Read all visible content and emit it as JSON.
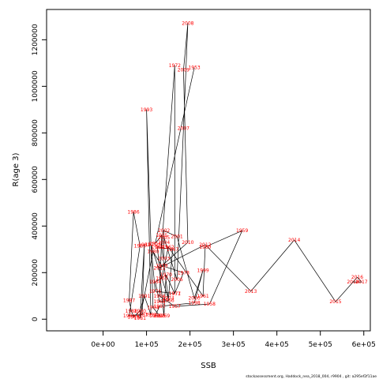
{
  "chart_data": {
    "type": "scatter",
    "connected": true,
    "title": "",
    "xlabel": "SSB",
    "ylabel": "R(age 3)",
    "xlim": [
      -130000,
      615000
    ],
    "ylim": [
      -50000,
      1330000
    ],
    "x_ticks": [
      0,
      100000,
      200000,
      300000,
      400000,
      500000,
      600000
    ],
    "x_tick_labels": [
      "0e+00",
      "1e+05",
      "2e+05",
      "3e+05",
      "4e+05",
      "5e+05",
      "6e+05"
    ],
    "y_ticks": [
      0,
      200000,
      400000,
      600000,
      800000,
      1000000,
      1200000
    ],
    "y_tick_labels": [
      "0",
      "200000",
      "400000",
      "600000",
      "800000",
      "1000000",
      "1200000"
    ],
    "line_color": "#000000",
    "label_color": "#ff0000",
    "points": [
      {
        "year": "1953",
        "ssb": 210000,
        "rec": 1080000
      },
      {
        "year": "1954",
        "ssb": 120000,
        "rec": 325000
      },
      {
        "year": "1955",
        "ssb": 135000,
        "rec": 360000
      },
      {
        "year": "1956",
        "ssb": 130000,
        "rec": 100000
      },
      {
        "year": "1957",
        "ssb": 165000,
        "rec": 55000
      },
      {
        "year": "1958",
        "ssb": 245000,
        "rec": 65000
      },
      {
        "year": "1959",
        "ssb": 320000,
        "rec": 380000
      },
      {
        "year": "1960",
        "ssb": 235000,
        "rec": 310000
      },
      {
        "year": "1961",
        "ssb": 230000,
        "rec": 100000
      },
      {
        "year": "1962",
        "ssb": 150000,
        "rec": 310000
      },
      {
        "year": "1963",
        "ssb": 135000,
        "rec": 175000
      },
      {
        "year": "1964",
        "ssb": 120000,
        "rec": 160000
      },
      {
        "year": "1965",
        "ssb": 130000,
        "rec": 75000
      },
      {
        "year": "1966",
        "ssb": 150000,
        "rec": 80000
      },
      {
        "year": "1967",
        "ssb": 160000,
        "rec": 300000
      },
      {
        "year": "1968",
        "ssb": 125000,
        "rec": 310000
      },
      {
        "year": "1969",
        "ssb": 140000,
        "rec": 15000
      },
      {
        "year": "1970",
        "ssb": 145000,
        "rec": 190000
      },
      {
        "year": "1971",
        "ssb": 165000,
        "rec": 110000
      },
      {
        "year": "1972",
        "ssb": 165000,
        "rec": 1090000
      },
      {
        "year": "1973",
        "ssb": 135000,
        "rec": 310000
      },
      {
        "year": "1974",
        "ssb": 150000,
        "rec": 90000
      },
      {
        "year": "1975",
        "ssb": 110000,
        "rec": 320000
      },
      {
        "year": "1976",
        "ssb": 120000,
        "rec": 120000
      },
      {
        "year": "1977",
        "ssb": 165000,
        "rec": 110000
      },
      {
        "year": "1978",
        "ssb": 185000,
        "rec": 200000
      },
      {
        "year": "1979",
        "ssb": 135000,
        "rec": 230000
      },
      {
        "year": "1980",
        "ssb": 115000,
        "rec": 290000
      },
      {
        "year": "1981",
        "ssb": 85000,
        "rec": 5000
      },
      {
        "year": "1982",
        "ssb": 95000,
        "rec": 320000
      },
      {
        "year": "1983",
        "ssb": 90000,
        "rec": 20000
      },
      {
        "year": "1984",
        "ssb": 60000,
        "rec": 15000
      },
      {
        "year": "1985",
        "ssb": 85000,
        "rec": 315000
      },
      {
        "year": "1986",
        "ssb": 70000,
        "rec": 460000
      },
      {
        "year": "1987",
        "ssb": 60000,
        "rec": 80000
      },
      {
        "year": "1988",
        "ssb": 65000,
        "rec": 35000
      },
      {
        "year": "1989",
        "ssb": 70000,
        "rec": 10000
      },
      {
        "year": "1990",
        "ssb": 85000,
        "rec": 35000
      },
      {
        "year": "1991",
        "ssb": 95000,
        "rec": 100000
      },
      {
        "year": "1992",
        "ssb": 110000,
        "rec": 20000
      },
      {
        "year": "1993",
        "ssb": 100000,
        "rec": 900000
      },
      {
        "year": "1994",
        "ssb": 115000,
        "rec": 50000
      },
      {
        "year": "1995",
        "ssb": 130000,
        "rec": 15000
      },
      {
        "year": "1996",
        "ssb": 120000,
        "rec": 15000
      },
      {
        "year": "1997",
        "ssb": 130000,
        "rec": 55000
      },
      {
        "year": "1998",
        "ssb": 210000,
        "rec": 70000
      },
      {
        "year": "1999",
        "ssb": 230000,
        "rec": 210000
      },
      {
        "year": "2000",
        "ssb": 210000,
        "rec": 90000
      },
      {
        "year": "2001",
        "ssb": 170000,
        "rec": 355000
      },
      {
        "year": "2002",
        "ssb": 140000,
        "rec": 380000
      },
      {
        "year": "2003",
        "ssb": 140000,
        "rec": 260000
      },
      {
        "year": "2004",
        "ssb": 140000,
        "rec": 330000
      },
      {
        "year": "2005",
        "ssb": 140000,
        "rec": 350000
      },
      {
        "year": "2006",
        "ssb": 170000,
        "rec": 170000
      },
      {
        "year": "2007",
        "ssb": 185000,
        "rec": 820000
      },
      {
        "year": "2008",
        "ssb": 195000,
        "rec": 1270000
      },
      {
        "year": "2009",
        "ssb": 185000,
        "rec": 1070000
      },
      {
        "year": "2010",
        "ssb": 195000,
        "rec": 330000
      },
      {
        "year": "2011",
        "ssb": 130000,
        "rec": 220000
      },
      {
        "year": "2012",
        "ssb": 235000,
        "rec": 320000
      },
      {
        "year": "2013",
        "ssb": 340000,
        "rec": 120000
      },
      {
        "year": "2014",
        "ssb": 440000,
        "rec": 340000
      },
      {
        "year": "2015",
        "ssb": 535000,
        "rec": 75000
      },
      {
        "year": "2016",
        "ssb": 585000,
        "rec": 180000
      },
      {
        "year": "2017",
        "ssb": 595000,
        "rec": 160000
      },
      {
        "year": "2018",
        "ssb": 575000,
        "rec": 160000
      }
    ]
  },
  "footer": "stockassessment.org, Haddock_nea_2018_004, r9904 , git: a295ef2f11ae"
}
